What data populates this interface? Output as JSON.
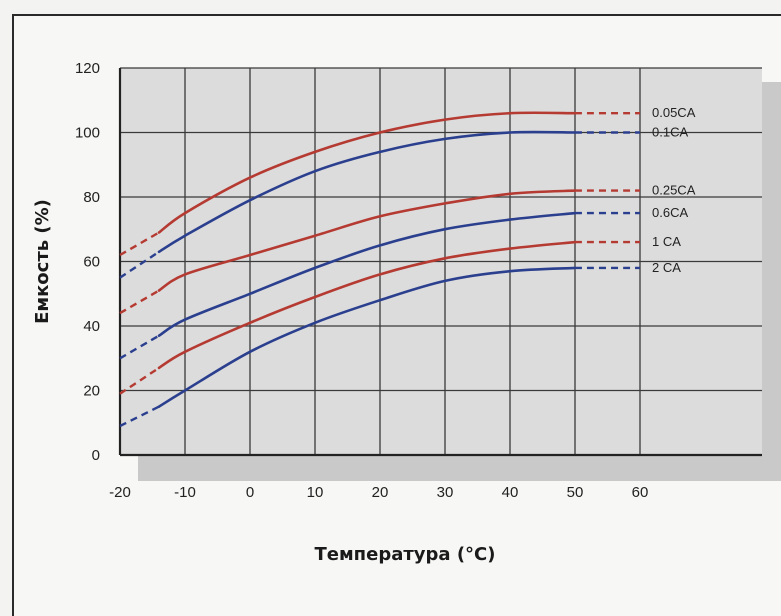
{
  "chart_data": {
    "type": "line",
    "xlabel": "Температура (°C)",
    "ylabel": "Емкость (%)",
    "xlim": [
      -20,
      60
    ],
    "ylim": [
      0,
      120
    ],
    "x_ticks": [
      -20,
      -10,
      0,
      10,
      20,
      30,
      40,
      50,
      60
    ],
    "y_ticks": [
      0,
      20,
      40,
      60,
      80,
      100,
      120
    ],
    "grid": true,
    "legend_placement": "right, at line ends",
    "dashed_segments": "x from -20 to -14 and from 50 to 60",
    "series": [
      {
        "name": "0.05CA",
        "color": "#b53a32",
        "x": [
          -20,
          -14,
          -10,
          0,
          10,
          20,
          30,
          40,
          50,
          60
        ],
        "y": [
          62,
          69,
          75,
          86,
          94,
          100,
          104,
          106,
          106,
          106
        ]
      },
      {
        "name": "0.1CA",
        "color": "#2b3f8f",
        "x": [
          -20,
          -14,
          -10,
          0,
          10,
          20,
          30,
          40,
          50,
          60
        ],
        "y": [
          55,
          63,
          68,
          79,
          88,
          94,
          98,
          100,
          100,
          100
        ]
      },
      {
        "name": "0.25CA",
        "color": "#b53a32",
        "x": [
          -20,
          -14,
          -10,
          0,
          10,
          20,
          30,
          40,
          50,
          60
        ],
        "y": [
          44,
          51,
          56,
          62,
          68,
          74,
          78,
          81,
          82,
          82
        ]
      },
      {
        "name": "0.6CA",
        "color": "#2b3f8f",
        "x": [
          -20,
          -14,
          -10,
          0,
          10,
          20,
          30,
          40,
          50,
          60
        ],
        "y": [
          30,
          37,
          42,
          50,
          58,
          65,
          70,
          73,
          75,
          75
        ]
      },
      {
        "name": "1 CA",
        "color": "#b53a32",
        "x": [
          -20,
          -14,
          -10,
          0,
          10,
          20,
          30,
          40,
          50,
          60
        ],
        "y": [
          19,
          27,
          32,
          41,
          49,
          56,
          61,
          64,
          66,
          66
        ]
      },
      {
        "name": "2 CA",
        "color": "#2b3f8f",
        "x": [
          -20,
          -14,
          -10,
          0,
          10,
          20,
          30,
          40,
          50,
          60
        ],
        "y": [
          9,
          15,
          20,
          32,
          41,
          48,
          54,
          57,
          58,
          58
        ]
      }
    ]
  }
}
